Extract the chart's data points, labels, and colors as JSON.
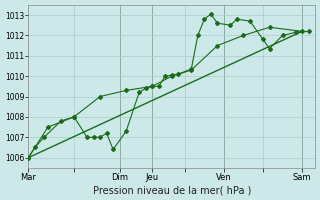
{
  "background_color": "#cce8e8",
  "plot_bg_color": "#cce8e8",
  "grid_color": "#aacccc",
  "line_color": "#1a6b1a",
  "xlabel": "Pression niveau de la mer( hPa )",
  "ylim": [
    1005.5,
    1013.5
  ],
  "yticks": [
    1006,
    1007,
    1008,
    1009,
    1010,
    1011,
    1012,
    1013
  ],
  "day_labels": [
    "Mar",
    "",
    "Dim",
    "Jeu",
    "",
    "Ven",
    "",
    "Sam"
  ],
  "day_x_ticks": [
    0,
    3.5,
    7,
    9.5,
    12,
    15,
    18,
    21
  ],
  "day_x_vlines": [
    7,
    9.5,
    15,
    21
  ],
  "xlim": [
    0,
    22
  ],
  "line1_x": [
    0,
    0.5,
    1.2,
    2.5,
    3.5,
    4.5,
    5.0,
    5.5,
    6.0,
    6.5,
    7.5,
    8.5,
    9.0,
    9.5,
    10.0,
    10.5,
    11.0,
    11.5,
    12.5,
    13.0,
    13.5,
    14.0,
    14.5,
    15.5,
    16.0,
    17.0,
    18.0,
    18.5,
    19.5,
    20.5,
    21.5
  ],
  "line1_y": [
    1006.0,
    1006.5,
    1007.0,
    1007.8,
    1008.0,
    1007.0,
    1007.0,
    1007.0,
    1007.2,
    1006.4,
    1007.3,
    1009.2,
    1009.4,
    1009.5,
    1009.5,
    1010.0,
    1010.05,
    1010.1,
    1010.35,
    1012.0,
    1012.8,
    1013.05,
    1012.6,
    1012.5,
    1012.8,
    1012.7,
    1011.8,
    1011.35,
    1012.0,
    1012.15,
    1012.2
  ],
  "line2_x": [
    0,
    1.5,
    3.5,
    5.5,
    7.5,
    9.5,
    11.0,
    12.5,
    14.5,
    16.5,
    18.5,
    21.0
  ],
  "line2_y": [
    1006.0,
    1007.5,
    1008.0,
    1009.0,
    1009.3,
    1009.5,
    1010.0,
    1010.3,
    1011.5,
    1012.0,
    1012.4,
    1012.2
  ],
  "line3_x": [
    0,
    21
  ],
  "line3_y": [
    1006.0,
    1012.2
  ]
}
